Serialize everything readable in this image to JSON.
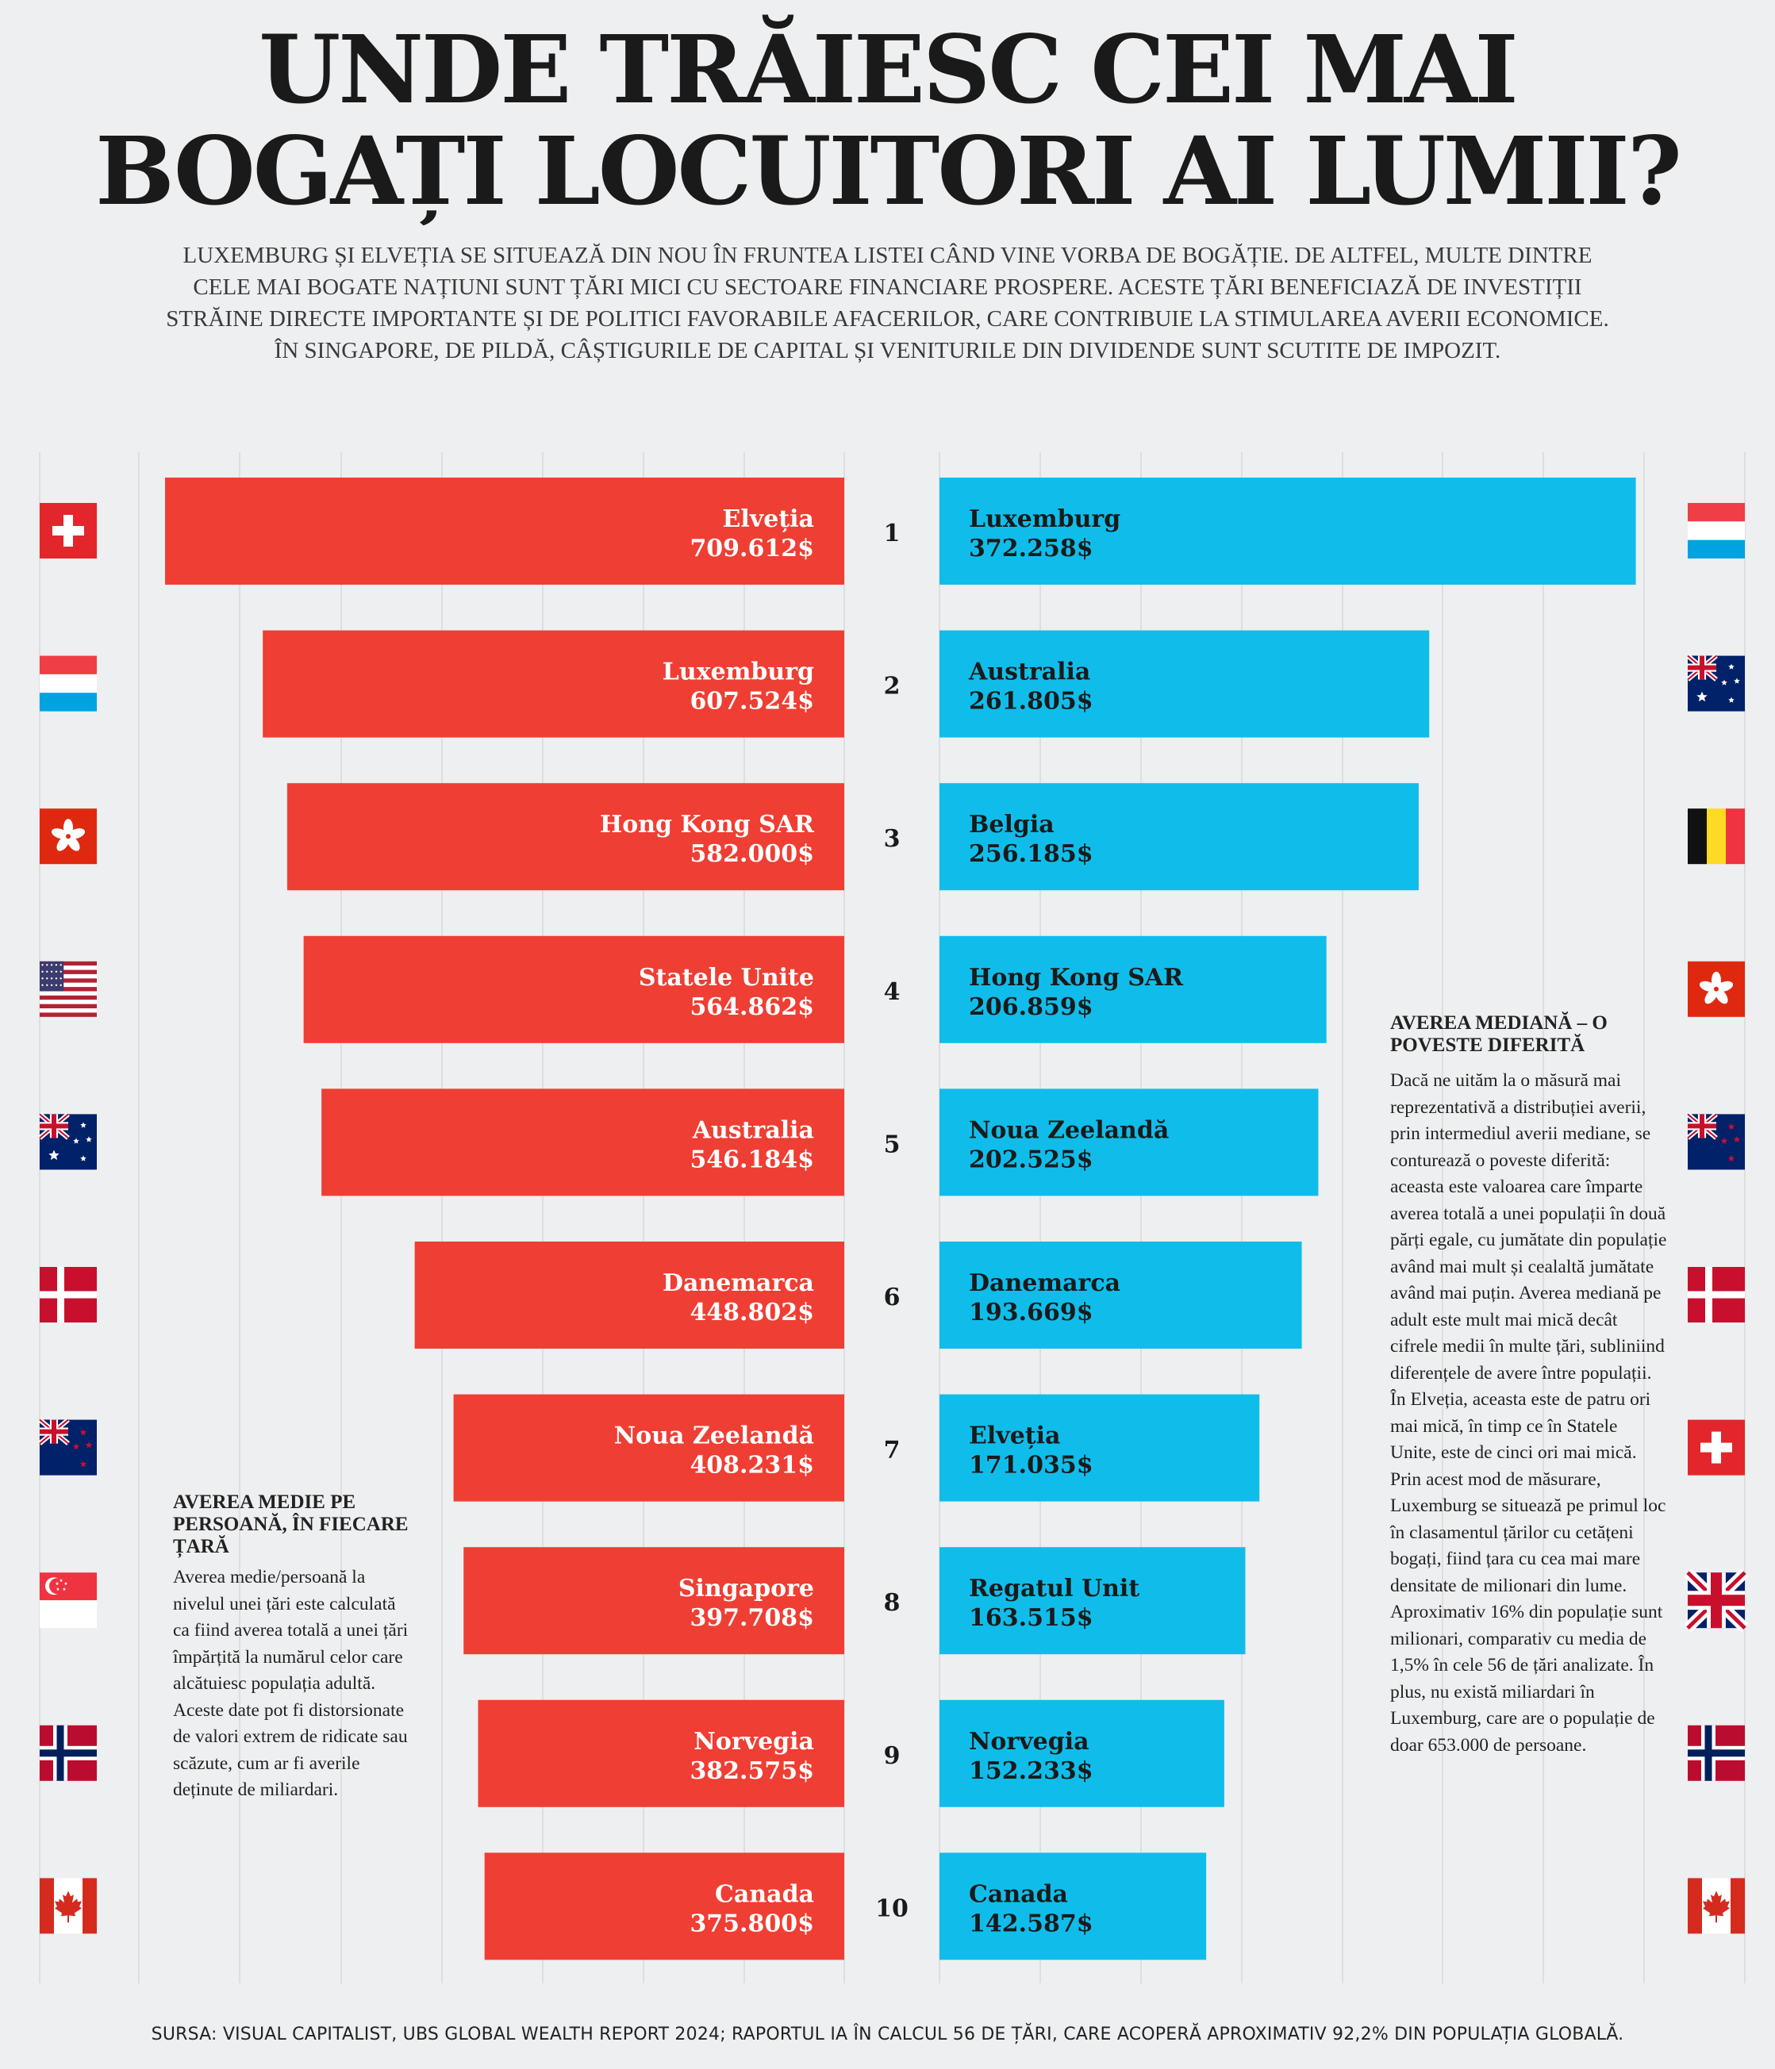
{
  "title_line1": "UNDE TRĂIESC CEI MAI",
  "title_line2": "BOGAȚI LOCUITORI AI LUMII?",
  "subtitle": "Luxemburg și Elveția se situează din nou în fruntea listei când vine vorba de bogăție. De altfel, multe dintre cele mai bogate națiuni sunt țări mici cu sectoare financiare prospere. Aceste țări beneficiază de investiții străine directe importante și de politici favorabile afacerilor, care contribuie la stimularea averii economice. În Singapore, de pildă, câștigurile de capital și veniturile din dividende sunt scutite de impozit.",
  "colors": {
    "mean": "#ef3e33",
    "median": "#10bdea",
    "background": "#eeeff0"
  },
  "chart_data": [
    {
      "type": "bar",
      "orientation": "horizontal",
      "series": [
        {
          "name": "Averea medie pe persoană, în fiecare țară",
          "color": "#ef3e33"
        }
      ],
      "categories": [
        "Elveția",
        "Luxemburg",
        "Hong Kong SAR",
        "Statele Unite",
        "Australia",
        "Danemarca",
        "Noua Zeelandă",
        "Singapore",
        "Norvegia",
        "Canada"
      ],
      "values": [
        709612,
        607524,
        582000,
        564862,
        546184,
        448802,
        408231,
        397708,
        382575,
        375800
      ],
      "value_labels": [
        "709.612$",
        "607.524$",
        "582.000$",
        "564.862$",
        "546.184$",
        "448.802$",
        "408.231$",
        "397.708$",
        "382.575$",
        "375.800$"
      ],
      "flags": [
        "switzerland-flag-icon",
        "luxembourg-flag-icon",
        "hong-kong-flag-icon",
        "usa-flag-icon",
        "australia-flag-icon",
        "denmark-flag-icon",
        "new-zealand-flag-icon",
        "singapore-flag-icon",
        "norway-flag-icon",
        "canada-flag-icon"
      ],
      "xlim": [
        0,
        800000
      ],
      "direction": "right-to-left",
      "grid": true
    },
    {
      "type": "bar",
      "orientation": "horizontal",
      "series": [
        {
          "name": "Averea mediană",
          "color": "#10bdea"
        }
      ],
      "categories": [
        "Luxemburg",
        "Australia",
        "Belgia",
        "Hong Kong SAR",
        "Noua Zeelandă",
        "Danemarca",
        "Elveția",
        "Regatul Unit",
        "Norvegia",
        "Canada"
      ],
      "values": [
        372258,
        261805,
        256185,
        206859,
        202525,
        193669,
        171035,
        163515,
        152233,
        142587
      ],
      "value_labels": [
        "372.258$",
        "261.805$",
        "256.185$",
        "206.859$",
        "202.525$",
        "193.669$",
        "171.035$",
        "163.515$",
        "152.233$",
        "142.587$"
      ],
      "flags": [
        "luxembourg-flag-icon",
        "australia-flag-icon",
        "belgium-flag-icon",
        "hong-kong-flag-icon",
        "new-zealand-flag-icon",
        "denmark-flag-icon",
        "switzerland-flag-icon",
        "uk-flag-icon",
        "norway-flag-icon",
        "canada-flag-icon"
      ],
      "xlim": [
        0,
        400000
      ],
      "direction": "left-to-right",
      "grid": true
    }
  ],
  "ranks": [
    "1",
    "2",
    "3",
    "4",
    "5",
    "6",
    "7",
    "8",
    "9",
    "10"
  ],
  "note_mean": {
    "heading": "Averea medie pe persoană, în fiecare țară",
    "text": "Averea medie/persoană la nivelul unei țări este calculată ca fiind averea totală a unei țări împărțită la numărul celor care alcătuiesc populația adultă. Aceste date pot fi distorsionate de valori extrem de ridicate sau scăzute, cum ar fi averile deținute de miliardari."
  },
  "note_median": {
    "heading": "Averea mediană – o poveste diferită",
    "text": "Dacă ne uităm la o măsură mai reprezentativă a distribuției averii, prin intermediul averii mediane, se conturează o poveste diferită: aceasta este valoarea care împarte averea totală a unei populații în două părți egale, cu jumătate din populație având mai mult și cealaltă jumătate având mai puțin. Averea mediană pe adult este mult mai mică decât cifrele medii în multe țări, subliniind diferențele de avere între populații. În Elveția, aceasta este de patru ori mai mică, în timp ce în Statele Unite, este de cinci ori mai mică. Prin acest mod de măsurare, Luxemburg se situează pe primul loc în clasamentul țărilor cu cetățeni bogați, fiind țara cu cea mai mare densitate de milionari din lume. Aproximativ 16% din populație sunt milionari, comparativ cu media de 1,5% în cele 56 de țări analizate. În plus, nu există miliardari în Luxemburg, care are o populație de doar 653.000 de persoane."
  },
  "source": "Sursa: Visual Capitalist, UBS Global Wealth Report 2024; raportul ia în calcul 56 de țări, care acoperă aproximativ 92,2% din populația globală."
}
